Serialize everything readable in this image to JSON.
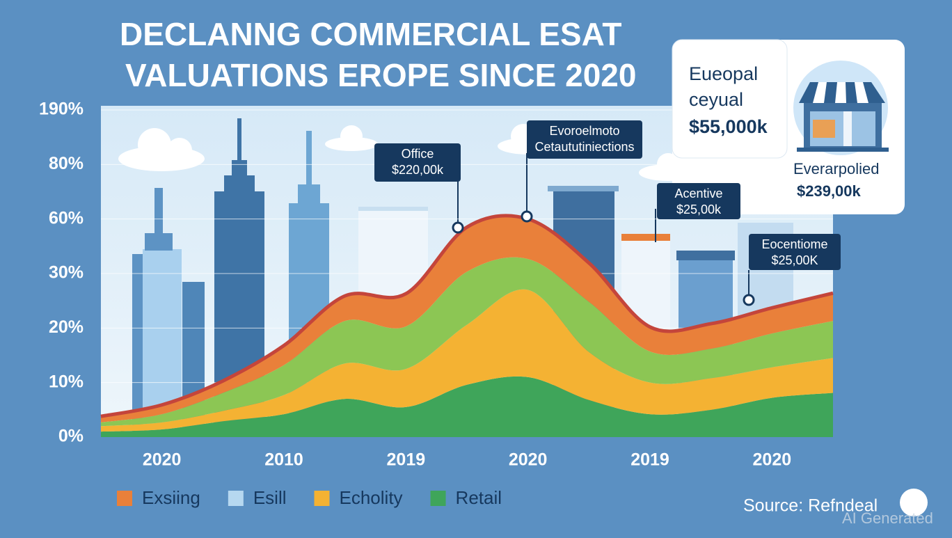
{
  "chart_data": {
    "type": "stacked_area",
    "title": [
      "DECLANNG COMMERCIAL ESAT",
      "VALUATIONS EROPE SINCE 2020"
    ],
    "categories": [
      null,
      "2020",
      null,
      "2010",
      null,
      "2019",
      null,
      "2020",
      null,
      "2019",
      null,
      "2020",
      null
    ],
    "series": [
      {
        "name": "Exsiing",
        "color": "#e9803a",
        "values": [
          1.1,
          1.7,
          2.2,
          3.6,
          4.6,
          6.0,
          24.5,
          22,
          11,
          4.5,
          4.6,
          4.7,
          5.1
        ]
      },
      {
        "name": "Esill",
        "color": "#8cc654",
        "values": [
          0.7,
          1.5,
          3.3,
          5.5,
          7.8,
          7.8,
          10.4,
          11,
          9.2,
          5.7,
          5.4,
          6.2,
          6.8
        ]
      },
      {
        "name": "Echolity",
        "color": "#f4b233",
        "values": [
          1.0,
          1.3,
          1.9,
          3.5,
          6.5,
          7.0,
          11,
          16,
          8.8,
          5.8,
          5.8,
          5.6,
          6.4
        ]
      },
      {
        "name": "Retail",
        "color": "#3fa55a",
        "values": [
          1.0,
          1.4,
          2.9,
          4.2,
          7.0,
          5.5,
          9.6,
          11,
          6.8,
          4.2,
          5.0,
          7.2,
          8.1
        ]
      }
    ],
    "ylim": [
      0,
      190
    ],
    "yticks": [
      {
        "value": 0,
        "label": "0%"
      },
      {
        "value": 10,
        "label": "10%"
      },
      {
        "value": 20,
        "label": "20%"
      },
      {
        "value": 30,
        "label": "30%"
      },
      {
        "value": 60,
        "label": "60%"
      },
      {
        "value": 80,
        "label": "80%"
      },
      {
        "value": 190,
        "label": "190%"
      }
    ],
    "grid": true,
    "annotations": [
      [
        "Office",
        "$220,00k"
      ],
      [
        "Evoroelmoto",
        "Cetaututiniections"
      ],
      [
        "Acentive",
        "$25,00k"
      ],
      [
        "Eocentiome",
        "$25,00K"
      ]
    ],
    "info_card": {
      "title": [
        "Eueopal",
        "ceyual",
        "$55,000k"
      ],
      "caption": [
        "Everarpolied",
        "$239,00k"
      ]
    },
    "source": "Source: Refndeal",
    "watermark": "AI Generated"
  }
}
